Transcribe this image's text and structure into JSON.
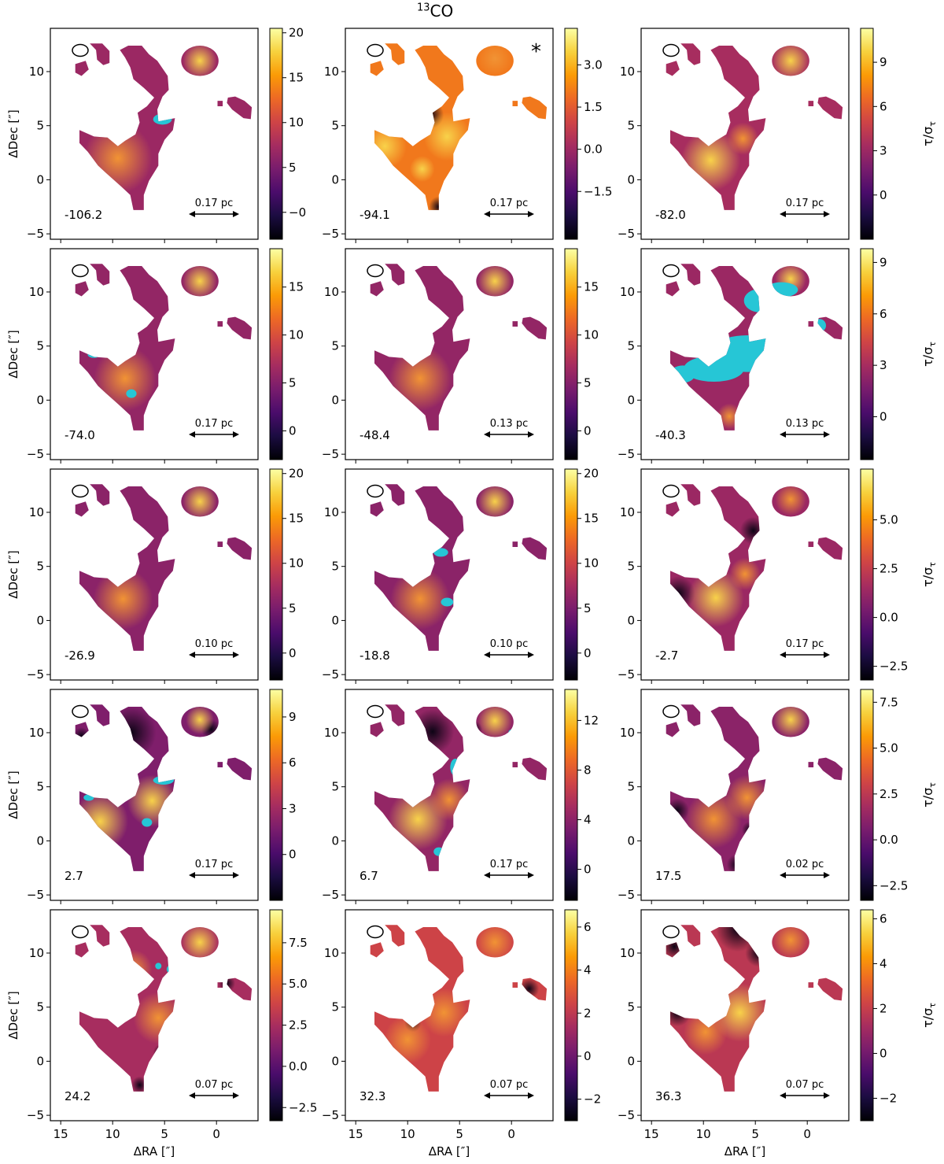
{
  "figure": {
    "title_sup": "13",
    "title_main": "CO",
    "xlabel": "ΔRA [″]",
    "ylabel": "ΔDec [″]",
    "cbar_label": "τ/σ_τ",
    "star_marker": "*",
    "colormap": [
      "#000004",
      "#1b0c41",
      "#4a0c6b",
      "#781c6d",
      "#a52c60",
      "#cf4446",
      "#ed6925",
      "#fb9b06",
      "#f7d13d",
      "#fcffa4"
    ],
    "masked_color": "#26c6d6",
    "xticks": [
      15,
      10,
      5,
      0
    ],
    "yticks": [
      -5,
      0,
      5,
      10
    ],
    "xlim": [
      16.0,
      -4.0
    ],
    "ylim": [
      -5.5,
      14.0
    ]
  },
  "chart_data": [
    {
      "type": "heatmap",
      "velocity": "-106.2",
      "scale_bar": "0.17 pc",
      "cbar_ticks": [
        "-0",
        "5",
        "10",
        "15",
        "20"
      ],
      "cbar_range": [
        -3,
        20.5
      ],
      "star": false
    },
    {
      "type": "heatmap",
      "velocity": "-94.1",
      "scale_bar": "0.17 pc",
      "cbar_ticks": [
        "-1.5",
        "0.0",
        "1.5",
        "3.0"
      ],
      "cbar_range": [
        -3.2,
        4.3
      ],
      "star": true
    },
    {
      "type": "heatmap",
      "velocity": "-82.0",
      "scale_bar": "0.17 pc",
      "cbar_ticks": [
        "0",
        "3",
        "6",
        "9"
      ],
      "cbar_range": [
        -3,
        11.3
      ],
      "star": false
    },
    {
      "type": "heatmap",
      "velocity": "-74.0",
      "scale_bar": "0.17 pc",
      "cbar_ticks": [
        "0",
        "5",
        "10",
        "15"
      ],
      "cbar_range": [
        -3,
        19
      ],
      "star": false
    },
    {
      "type": "heatmap",
      "velocity": "-48.4",
      "scale_bar": "0.13 pc",
      "cbar_ticks": [
        "0",
        "5",
        "10",
        "15"
      ],
      "cbar_range": [
        -3,
        19
      ],
      "star": false
    },
    {
      "type": "heatmap",
      "velocity": "-40.3",
      "scale_bar": "0.13 pc",
      "cbar_ticks": [
        "0",
        "3",
        "6",
        "9"
      ],
      "cbar_range": [
        -2.5,
        9.8
      ],
      "star": false
    },
    {
      "type": "heatmap",
      "velocity": "-26.9",
      "scale_bar": "0.10 pc",
      "cbar_ticks": [
        "0",
        "5",
        "10",
        "15",
        "20"
      ],
      "cbar_range": [
        -3,
        20.5
      ],
      "star": false
    },
    {
      "type": "heatmap",
      "velocity": "-18.8",
      "scale_bar": "0.10 pc",
      "cbar_ticks": [
        "0",
        "5",
        "10",
        "15",
        "20"
      ],
      "cbar_range": [
        -3,
        20.5
      ],
      "star": false
    },
    {
      "type": "heatmap",
      "velocity": "-2.7",
      "scale_bar": "0.17 pc",
      "cbar_ticks": [
        "-2.5",
        "0.0",
        "2.5",
        "5.0"
      ],
      "cbar_range": [
        -3.2,
        7.6
      ],
      "star": false
    },
    {
      "type": "heatmap",
      "velocity": "2.7",
      "scale_bar": "0.17 pc",
      "cbar_ticks": [
        "0",
        "3",
        "6",
        "9"
      ],
      "cbar_range": [
        -3,
        10.8
      ],
      "star": false
    },
    {
      "type": "heatmap",
      "velocity": "6.7",
      "scale_bar": "0.17 pc",
      "cbar_ticks": [
        "0",
        "4",
        "8",
        "12"
      ],
      "cbar_range": [
        -2.5,
        14.5
      ],
      "star": false
    },
    {
      "type": "heatmap",
      "velocity": "17.5",
      "scale_bar": "0.02 pc",
      "cbar_ticks": [
        "-2.5",
        "0.0",
        "2.5",
        "5.0",
        "7.5"
      ],
      "cbar_range": [
        -3.3,
        8.2
      ],
      "star": false
    },
    {
      "type": "heatmap",
      "velocity": "24.2",
      "scale_bar": "0.07 pc",
      "cbar_ticks": [
        "-2.5",
        "0.0",
        "2.5",
        "5.0",
        "7.5"
      ],
      "cbar_range": [
        -3.3,
        9.5
      ],
      "star": false
    },
    {
      "type": "heatmap",
      "velocity": "32.3",
      "scale_bar": "0.07 pc",
      "cbar_ticks": [
        "-2",
        "0",
        "2",
        "4",
        "6"
      ],
      "cbar_range": [
        -3,
        6.8
      ],
      "star": false
    },
    {
      "type": "heatmap",
      "velocity": "36.3",
      "scale_bar": "0.07 pc",
      "cbar_ticks": [
        "-2",
        "0",
        "2",
        "4",
        "6"
      ],
      "cbar_range": [
        -3,
        6.4
      ],
      "star": false
    }
  ]
}
